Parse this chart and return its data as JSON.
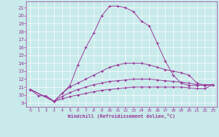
{
  "xlabel": "Windchill (Refroidissement éolien,°C)",
  "bg_color": "#c8eaea",
  "line_color": "#993399",
  "x_ticks": [
    0,
    1,
    2,
    3,
    4,
    5,
    6,
    7,
    8,
    9,
    10,
    11,
    12,
    13,
    14,
    15,
    16,
    17,
    18,
    19,
    20,
    21,
    22,
    23
  ],
  "y_ticks": [
    9,
    10,
    11,
    12,
    13,
    14,
    15,
    16,
    17,
    18,
    19,
    20,
    21
  ],
  "ylim": [
    8.5,
    21.8
  ],
  "xlim": [
    -0.5,
    23.5
  ],
  "line1_x": [
    0,
    1,
    2,
    3,
    4,
    5,
    6,
    7,
    8,
    9,
    10,
    11,
    12,
    13,
    14,
    15,
    16,
    17,
    18,
    19,
    20,
    21,
    22,
    23
  ],
  "line1_y": [
    10.7,
    9.9,
    9.9,
    9.2,
    10.2,
    11.2,
    13.8,
    16.0,
    17.8,
    20.0,
    21.2,
    21.2,
    21.0,
    20.5,
    19.3,
    18.7,
    16.5,
    14.3,
    12.5,
    11.5,
    11.2,
    11.2,
    11.3,
    11.3
  ],
  "line2_full_x": [
    0,
    3,
    4,
    5,
    6,
    7,
    8,
    9,
    10,
    11,
    12,
    13,
    14,
    15,
    16,
    17,
    18,
    19,
    20,
    21,
    22,
    23
  ],
  "line2_full_y": [
    10.7,
    9.2,
    10.2,
    11.0,
    11.5,
    12.0,
    12.5,
    13.0,
    13.5,
    13.8,
    14.0,
    14.0,
    14.0,
    13.8,
    13.5,
    13.2,
    13.0,
    12.8,
    12.5,
    11.5,
    11.2,
    11.3
  ],
  "line3_full_x": [
    0,
    3,
    4,
    5,
    6,
    7,
    8,
    9,
    10,
    11,
    12,
    13,
    14,
    15,
    16,
    17,
    18,
    19,
    20,
    21,
    22,
    23
  ],
  "line3_full_y": [
    10.7,
    9.2,
    9.8,
    10.3,
    10.7,
    11.0,
    11.3,
    11.5,
    11.7,
    11.8,
    11.9,
    12.0,
    12.0,
    12.0,
    11.9,
    11.8,
    11.7,
    11.6,
    11.5,
    11.3,
    11.2,
    11.3
  ],
  "line4_full_x": [
    0,
    3,
    4,
    5,
    6,
    7,
    8,
    9,
    10,
    11,
    12,
    13,
    14,
    15,
    16,
    17,
    18,
    19,
    20,
    21,
    22,
    23
  ],
  "line4_full_y": [
    10.7,
    9.2,
    9.5,
    9.8,
    10.0,
    10.2,
    10.4,
    10.6,
    10.7,
    10.8,
    10.9,
    11.0,
    11.0,
    11.0,
    11.0,
    11.0,
    11.0,
    11.0,
    10.9,
    10.8,
    10.8,
    11.3
  ]
}
